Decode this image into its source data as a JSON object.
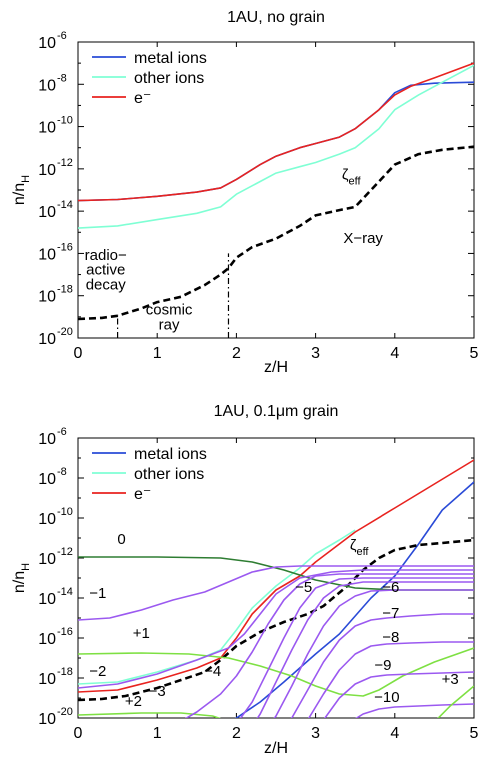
{
  "chart_data": [
    {
      "type": "line",
      "title": "1AU, no grain",
      "xlabel": "z/H",
      "ylabel": "n/n_H",
      "xlim": [
        0,
        5
      ],
      "ylim_log10": [
        -20,
        -6
      ],
      "xticks": [
        "0",
        "1",
        "2",
        "3",
        "4",
        "5"
      ],
      "yticks": [
        {
          "base": "10",
          "exp": "-6"
        },
        {
          "base": "10",
          "exp": "-8"
        },
        {
          "base": "10",
          "exp": "-10"
        },
        {
          "base": "10",
          "exp": "-12"
        },
        {
          "base": "10",
          "exp": "-14"
        },
        {
          "base": "10",
          "exp": "-16"
        },
        {
          "base": "10",
          "exp": "-18"
        },
        {
          "base": "10",
          "exp": "-20"
        }
      ],
      "legend": {
        "placement": "top-left",
        "entries": [
          {
            "label": "metal ions",
            "color": "#2a4bd7"
          },
          {
            "label": "other ions",
            "color": "#7fffd4"
          },
          {
            "label": "e⁻",
            "color": "#e8231f"
          }
        ]
      },
      "series": [
        {
          "name": "metal ions",
          "color": "#2a4bd7",
          "log10": true,
          "x": [
            0,
            0.5,
            1.0,
            1.5,
            1.8,
            2.0,
            2.3,
            2.5,
            2.8,
            3.0,
            3.3,
            3.5,
            3.8,
            4.0,
            4.2,
            4.5,
            5.0
          ],
          "y": [
            -13.5,
            -13.45,
            -13.3,
            -13.1,
            -12.9,
            -12.5,
            -11.8,
            -11.4,
            -11.0,
            -10.8,
            -10.5,
            -10.1,
            -9.2,
            -8.4,
            -8.05,
            -7.95,
            -7.9
          ]
        },
        {
          "name": "other ions",
          "color": "#7fffd4",
          "log10": true,
          "x": [
            0,
            0.5,
            1.0,
            1.5,
            1.8,
            2.0,
            2.3,
            2.5,
            2.8,
            3.0,
            3.3,
            3.5,
            3.8,
            4.0,
            4.3,
            4.5,
            5.0
          ],
          "y": [
            -14.8,
            -14.7,
            -14.4,
            -14.1,
            -13.8,
            -13.2,
            -12.6,
            -12.2,
            -11.9,
            -11.7,
            -11.3,
            -11.0,
            -10.1,
            -9.2,
            -8.5,
            -8.1,
            -7.1
          ]
        },
        {
          "name": "e⁻",
          "color": "#e8231f",
          "log10": true,
          "x": [
            0,
            0.5,
            1.0,
            1.5,
            1.8,
            2.0,
            2.3,
            2.5,
            2.8,
            3.0,
            3.3,
            3.5,
            3.8,
            4.0,
            4.2,
            4.5,
            5.0
          ],
          "y": [
            -13.5,
            -13.45,
            -13.3,
            -13.1,
            -12.9,
            -12.5,
            -11.8,
            -11.4,
            -11.0,
            -10.8,
            -10.5,
            -10.1,
            -9.2,
            -8.5,
            -8.1,
            -7.7,
            -7.0
          ]
        },
        {
          "name": "ζ_eff",
          "color": "#000000",
          "style": "dashed",
          "log10": true,
          "x": [
            0,
            0.3,
            0.5,
            0.8,
            1.0,
            1.3,
            1.6,
            1.8,
            1.9,
            2.0,
            2.2,
            2.5,
            2.8,
            3.0,
            3.3,
            3.5,
            3.8,
            4.0,
            4.3,
            4.6,
            5.0
          ],
          "y": [
            -19.1,
            -19.05,
            -18.95,
            -18.6,
            -18.3,
            -18.05,
            -17.5,
            -17.0,
            -16.7,
            -16.2,
            -15.7,
            -15.3,
            -14.7,
            -14.2,
            -13.95,
            -13.8,
            -12.6,
            -11.8,
            -11.3,
            -11.1,
            -10.95
          ]
        }
      ],
      "vlines": [
        {
          "x": 0.5,
          "y_log10": [
            -20,
            -18.9
          ],
          "style": "dashdot"
        },
        {
          "x": 1.9,
          "y_log10": [
            -20,
            -16.0
          ],
          "style": "dashdot"
        }
      ],
      "annotations": [
        {
          "text": "ζ",
          "sub": "eff",
          "x": 3.45,
          "y_log10": -12.5
        },
        {
          "text": "X−ray",
          "x": 3.6,
          "y_log10": -15.5
        },
        {
          "text": "radio−",
          "x": 0.35,
          "y_log10": -16.3
        },
        {
          "text": "active",
          "x": 0.35,
          "y_log10": -17.0
        },
        {
          "text": "decay",
          "x": 0.35,
          "y_log10": -17.7
        },
        {
          "text": "cosmic",
          "x": 1.15,
          "y_log10": -18.9
        },
        {
          "text": "ray",
          "x": 1.15,
          "y_log10": -19.6
        }
      ]
    },
    {
      "type": "line",
      "title": "1AU, 0.1μm grain",
      "xlabel": "z/H",
      "ylabel": "n/n_H",
      "xlim": [
        0,
        5
      ],
      "ylim_log10": [
        -20,
        -6
      ],
      "xticks": [
        "0",
        "1",
        "2",
        "3",
        "4",
        "5"
      ],
      "yticks": [
        {
          "base": "10",
          "exp": "-6"
        },
        {
          "base": "10",
          "exp": "-8"
        },
        {
          "base": "10",
          "exp": "-10"
        },
        {
          "base": "10",
          "exp": "-12"
        },
        {
          "base": "10",
          "exp": "-14"
        },
        {
          "base": "10",
          "exp": "-16"
        },
        {
          "base": "10",
          "exp": "-18"
        },
        {
          "base": "10",
          "exp": "-20"
        }
      ],
      "legend": {
        "placement": "top-left",
        "entries": [
          {
            "label": "metal ions",
            "color": "#2a4bd7"
          },
          {
            "label": "other ions",
            "color": "#7fffd4"
          },
          {
            "label": "e⁻",
            "color": "#e8231f"
          }
        ]
      },
      "series": [
        {
          "name": "metal ions",
          "color": "#2a4bd7",
          "log10": true,
          "x": [
            1.5,
            1.8,
            2.0,
            2.3,
            2.6,
            3.0,
            3.3,
            3.5,
            3.7,
            4.0,
            4.3,
            4.6,
            5.0
          ],
          "y": [
            -21.0,
            -20.5,
            -20.0,
            -19.2,
            -18.2,
            -16.8,
            -15.8,
            -14.9,
            -14.0,
            -12.9,
            -11.3,
            -9.6,
            -8.2
          ]
        },
        {
          "name": "other ions",
          "color": "#7fffd4",
          "log10": true,
          "x": [
            0,
            0.5,
            1.0,
            1.5,
            1.8,
            2.0,
            2.2,
            2.5,
            2.8,
            3.0,
            3.3,
            3.5
          ],
          "y": [
            -18.3,
            -18.2,
            -17.7,
            -17.1,
            -16.6,
            -15.6,
            -14.5,
            -13.4,
            -12.5,
            -11.8,
            -11.1,
            -10.6
          ]
        },
        {
          "name": "e⁻",
          "color": "#e8231f",
          "log10": true,
          "x": [
            0,
            0.5,
            1.0,
            1.5,
            1.8,
            2.0,
            2.2,
            2.5,
            2.8,
            3.0,
            3.5,
            4.0,
            4.5,
            5.0
          ],
          "y": [
            -18.7,
            -18.6,
            -18.1,
            -17.5,
            -17.0,
            -16.0,
            -14.8,
            -13.6,
            -12.9,
            -12.2,
            -10.7,
            -9.5,
            -8.3,
            -7.1
          ]
        },
        {
          "name": "ζ_eff",
          "color": "#000000",
          "style": "dashed",
          "log10": true,
          "x": [
            0,
            0.3,
            0.6,
            1.0,
            1.3,
            1.6,
            1.8,
            2.0,
            2.3,
            2.6,
            2.9,
            3.1,
            3.4,
            3.6,
            3.8,
            4.0,
            4.3,
            4.6,
            5.0
          ],
          "y": [
            -19.1,
            -19.05,
            -18.9,
            -18.5,
            -18.1,
            -17.7,
            -17.1,
            -16.4,
            -15.7,
            -15.2,
            -14.8,
            -14.4,
            -13.4,
            -12.6,
            -12.0,
            -11.6,
            -11.35,
            -11.25,
            -11.1
          ]
        },
        {
          "name": "0",
          "color": "#2e7d32",
          "log10": true,
          "x": [
            0,
            1.0,
            1.8,
            2.2,
            2.6,
            3.0,
            3.5,
            4.0,
            4.5,
            5.0
          ],
          "y": [
            -11.95,
            -11.95,
            -12.0,
            -12.2,
            -12.6,
            -13.1,
            -13.5,
            -13.6,
            -13.6,
            -13.6
          ]
        },
        {
          "name": "-1",
          "color": "#9b59f0",
          "log10": true,
          "x": [
            0,
            0.4,
            0.8,
            1.2,
            1.6,
            1.9,
            2.2,
            2.5,
            2.8,
            3.2,
            3.6,
            4.0,
            4.5,
            5.0
          ],
          "y": [
            -15.1,
            -15.0,
            -14.6,
            -14.1,
            -13.7,
            -13.2,
            -12.7,
            -12.45,
            -12.4,
            -12.4,
            -12.4,
            -12.4,
            -12.4,
            -12.4
          ]
        },
        {
          "name": "+1",
          "color": "#7ee043",
          "log10": true,
          "x": [
            0,
            0.8,
            1.4,
            1.9,
            2.3,
            2.7,
            3.0,
            3.3,
            3.6,
            3.8,
            4.1,
            4.5,
            5.0
          ],
          "y": [
            -16.8,
            -16.75,
            -16.8,
            -17.0,
            -17.4,
            -17.9,
            -18.4,
            -18.8,
            -18.9,
            -18.6,
            -17.9,
            -17.2,
            -16.5
          ]
        },
        {
          "name": "-2",
          "color": "#9b59f0",
          "log10": true,
          "x": [
            0,
            0.5,
            1.0,
            1.5,
            1.9,
            2.1,
            2.3,
            2.5,
            2.8,
            3.2,
            3.6,
            4.0,
            5.0
          ],
          "y": [
            -18.5,
            -18.3,
            -17.8,
            -17.1,
            -16.5,
            -15.8,
            -14.8,
            -13.8,
            -13.0,
            -12.7,
            -12.6,
            -12.6,
            -12.6
          ]
        },
        {
          "name": "+2",
          "color": "#7ee043",
          "log10": true,
          "x": [
            0,
            0.8,
            1.3,
            1.7,
            2.0,
            2.2,
            2.35,
            2.5
          ],
          "y": [
            -19.85,
            -19.75,
            -19.75,
            -19.9,
            -20.3,
            -20.7,
            -21.0,
            -21.3
          ]
        },
        {
          "name": "-3",
          "color": "#9b59f0",
          "log10": true,
          "x": [
            1.0,
            1.2,
            1.5,
            1.8,
            2.0,
            2.2,
            2.4,
            2.6,
            2.8,
            3.0,
            3.3,
            3.6,
            4.0,
            5.0
          ],
          "y": [
            -21.0,
            -20.4,
            -19.7,
            -18.8,
            -17.9,
            -16.7,
            -15.3,
            -14.1,
            -13.3,
            -12.9,
            -12.8,
            -12.8,
            -12.8,
            -12.8
          ]
        },
        {
          "name": "-4",
          "color": "#9b59f0",
          "log10": true,
          "x": [
            1.85,
            2.0,
            2.2,
            2.4,
            2.6,
            2.8,
            3.0,
            3.3,
            3.6,
            4.0,
            5.0
          ],
          "y": [
            -21.0,
            -20.3,
            -19.2,
            -17.6,
            -16.0,
            -14.5,
            -13.5,
            -13.05,
            -13.0,
            -13.0,
            -13.0
          ]
        },
        {
          "name": "-5",
          "color": "#9b59f0",
          "log10": true,
          "x": [
            2.1,
            2.3,
            2.5,
            2.7,
            2.9,
            3.1,
            3.3,
            3.6,
            4.0,
            5.0
          ],
          "y": [
            -21.0,
            -19.8,
            -18.2,
            -16.6,
            -15.1,
            -14.0,
            -13.4,
            -13.2,
            -13.2,
            -13.2
          ]
        },
        {
          "name": "-6",
          "color": "#9b59f0",
          "log10": true,
          "x": [
            2.3,
            2.5,
            2.7,
            2.9,
            3.1,
            3.3,
            3.5,
            3.7,
            4.0,
            4.5,
            5.0
          ],
          "y": [
            -21.0,
            -19.9,
            -18.4,
            -16.8,
            -15.4,
            -14.4,
            -13.9,
            -13.65,
            -13.6,
            -13.6,
            -13.6
          ]
        },
        {
          "name": "-7",
          "color": "#9b59f0",
          "log10": true,
          "x": [
            2.5,
            2.7,
            2.9,
            3.1,
            3.3,
            3.5,
            3.7,
            3.9,
            4.2,
            4.6,
            5.0
          ],
          "y": [
            -21.0,
            -20.0,
            -18.6,
            -17.2,
            -16.1,
            -15.4,
            -15.1,
            -15.0,
            -14.9,
            -14.8,
            -14.8
          ]
        },
        {
          "name": "-8",
          "color": "#9b59f0",
          "log10": true,
          "x": [
            2.7,
            2.9,
            3.1,
            3.3,
            3.5,
            3.7,
            3.9,
            4.2,
            4.6,
            5.0
          ],
          "y": [
            -21.0,
            -20.1,
            -18.8,
            -17.6,
            -16.8,
            -16.4,
            -16.3,
            -16.25,
            -16.2,
            -16.2
          ]
        },
        {
          "name": "-9",
          "color": "#9b59f0",
          "log10": true,
          "x": [
            2.9,
            3.1,
            3.3,
            3.5,
            3.7,
            3.9,
            4.2,
            4.6,
            5.0
          ],
          "y": [
            -21.0,
            -20.1,
            -19.0,
            -18.3,
            -17.95,
            -17.85,
            -17.8,
            -17.75,
            -17.7
          ]
        },
        {
          "name": "-10",
          "color": "#9b59f0",
          "log10": true,
          "x": [
            3.2,
            3.4,
            3.6,
            3.8,
            4.0,
            4.3,
            4.6,
            5.0
          ],
          "y": [
            -21.0,
            -20.3,
            -19.8,
            -19.55,
            -19.45,
            -19.4,
            -19.35,
            -19.3
          ]
        },
        {
          "name": "+3",
          "color": "#7ee043",
          "log10": true,
          "x": [
            4.3,
            4.5,
            4.7,
            4.85,
            5.0
          ],
          "y": [
            -21.0,
            -20.2,
            -19.4,
            -18.9,
            -18.4
          ]
        }
      ],
      "annotations": [
        {
          "text": "0",
          "x": 0.55,
          "y_log10": -11.3
        },
        {
          "text": "−1",
          "x": 0.25,
          "y_log10": -14.0
        },
        {
          "text": "+1",
          "x": 0.8,
          "y_log10": -16.0
        },
        {
          "text": "−2",
          "x": 0.25,
          "y_log10": -17.9
        },
        {
          "text": "−3",
          "x": 1.0,
          "y_log10": -18.9
        },
        {
          "text": "+2",
          "x": 0.7,
          "y_log10": -19.4
        },
        {
          "text": "−4",
          "x": 1.7,
          "y_log10": -17.9
        },
        {
          "text": "−5",
          "x": 2.85,
          "y_log10": -13.7
        },
        {
          "text": "−6",
          "x": 3.95,
          "y_log10": -13.7
        },
        {
          "text": "−7",
          "x": 3.95,
          "y_log10": -15.0
        },
        {
          "text": "−8",
          "x": 3.95,
          "y_log10": -16.2
        },
        {
          "text": "−9",
          "x": 3.85,
          "y_log10": -17.6
        },
        {
          "text": "−10",
          "x": 3.9,
          "y_log10": -19.2
        },
        {
          "text": "+3",
          "x": 4.7,
          "y_log10": -18.3
        },
        {
          "text": "ζ",
          "sub": "eff",
          "x": 3.55,
          "y_log10": -11.6
        }
      ]
    }
  ]
}
